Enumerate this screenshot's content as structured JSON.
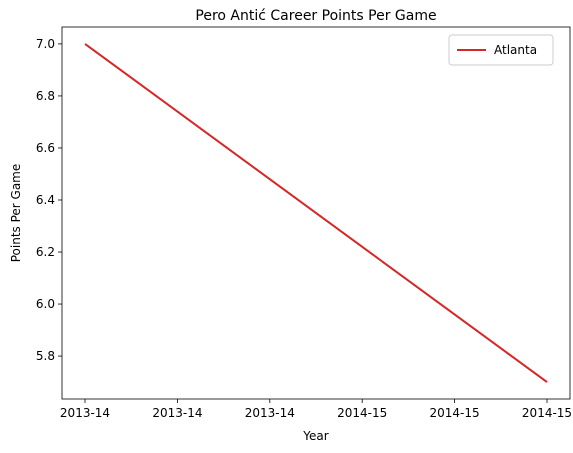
{
  "chart_data": {
    "type": "line",
    "title": "Pero Antić Career Points Per Game",
    "xlabel": "Year",
    "ylabel": "Points Per Game",
    "x_tick_labels": [
      "2013-14",
      "2013-14",
      "2013-14",
      "2014-15",
      "2014-15",
      "2014-15"
    ],
    "x": [
      "2013-14",
      "2014-15"
    ],
    "series": [
      {
        "name": "Atlanta",
        "color": "#d62728",
        "values": [
          7.0,
          5.7
        ]
      }
    ],
    "yticks": [
      5.8,
      6.0,
      6.2,
      6.4,
      6.6,
      6.8,
      7.0
    ],
    "ylim": [
      5.635,
      7.065
    ],
    "grid": false,
    "legend": "top-right"
  }
}
